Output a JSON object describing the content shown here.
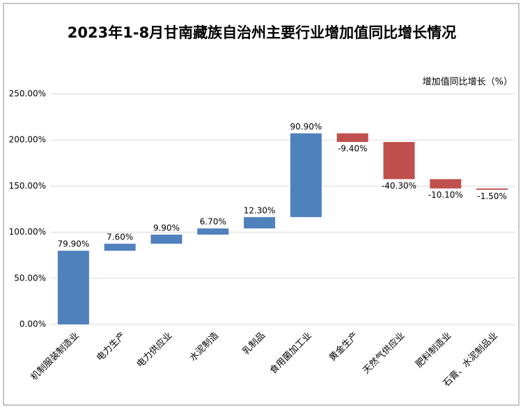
{
  "chart_data": {
    "type": "waterfall",
    "title": "2023年1-8月甘南藏族自治州主要行业增加值同比增长情况",
    "unit_label": "增加值同比增长（%）",
    "categories": [
      "机制服装制造业",
      "电力生产",
      "电力供应业",
      "水泥制造",
      "乳制品",
      "食用菌加工业",
      "黄金生产",
      "天然气供应业",
      "肥料制造业",
      "石膏、水泥制品业"
    ],
    "values": [
      79.9,
      7.6,
      9.9,
      6.7,
      12.3,
      90.9,
      -9.4,
      -40.3,
      -10.1,
      -1.5
    ],
    "value_labels": [
      "79.90%",
      "7.60%",
      "9.90%",
      "6.70%",
      "12.30%",
      "90.90%",
      "-9.40%",
      "-40.30%",
      "-10.10%",
      "-1.50%"
    ],
    "increase_color": "#4f81bd",
    "decrease_color": "#c0504d",
    "ylim": [
      0,
      250
    ],
    "yticks": [
      {
        "value": 0,
        "label": "0.00%"
      },
      {
        "value": 50,
        "label": "50.00%"
      },
      {
        "value": 100,
        "label": "100.00%"
      },
      {
        "value": 150,
        "label": "150.00%"
      },
      {
        "value": 200,
        "label": "200.00%"
      },
      {
        "value": 250,
        "label": "250.00%"
      }
    ],
    "grid": true
  }
}
